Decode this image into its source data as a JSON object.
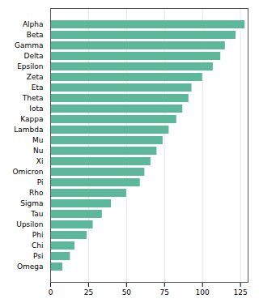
{
  "chart_data": {
    "type": "bar",
    "orientation": "horizontal",
    "categories": [
      "Alpha",
      "Beta",
      "Gamma",
      "Delta",
      "Epsilon",
      "Zeta",
      "Eta",
      "Theta",
      "Iota",
      "Kappa",
      "Lambda",
      "Mu",
      "Nu",
      "Xi",
      "Omicron",
      "Pi",
      "Rho",
      "Sigma",
      "Tau",
      "Upsilon",
      "Phi",
      "Chi",
      "Psi",
      "Omega"
    ],
    "values": [
      128,
      122,
      115,
      112,
      107,
      100,
      93,
      91,
      87,
      83,
      78,
      74,
      70,
      66,
      62,
      59,
      50,
      40,
      34,
      28,
      24,
      16,
      13,
      8
    ],
    "color": "#5cb899",
    "xlim": [
      0,
      130
    ],
    "xticks": [
      0,
      25,
      50,
      75,
      100,
      125
    ],
    "grid": true
  }
}
